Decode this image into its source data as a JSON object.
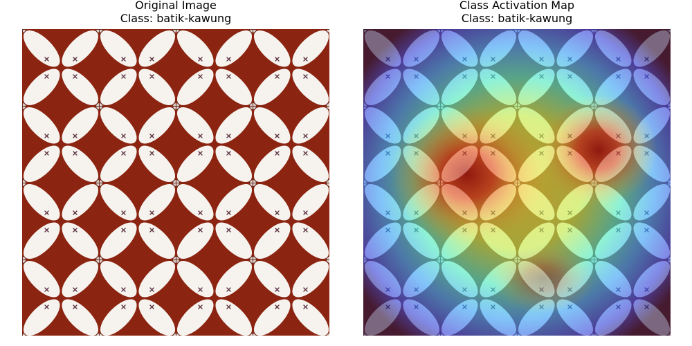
{
  "panels": [
    {
      "title": "Original Image",
      "class_label": "Class: batik-kawung",
      "image": "batik-kawung-pattern"
    },
    {
      "title": "Class Activation Map",
      "class_label": "Class: batik-kawung",
      "image": "batik-kawung-heatmap-overlay"
    }
  ],
  "colors": {
    "batik_background": "#8b2410",
    "batik_petal": "#f6f3ef",
    "heatmap_low": "#30123b",
    "heatmap_high": "#7a0403"
  }
}
